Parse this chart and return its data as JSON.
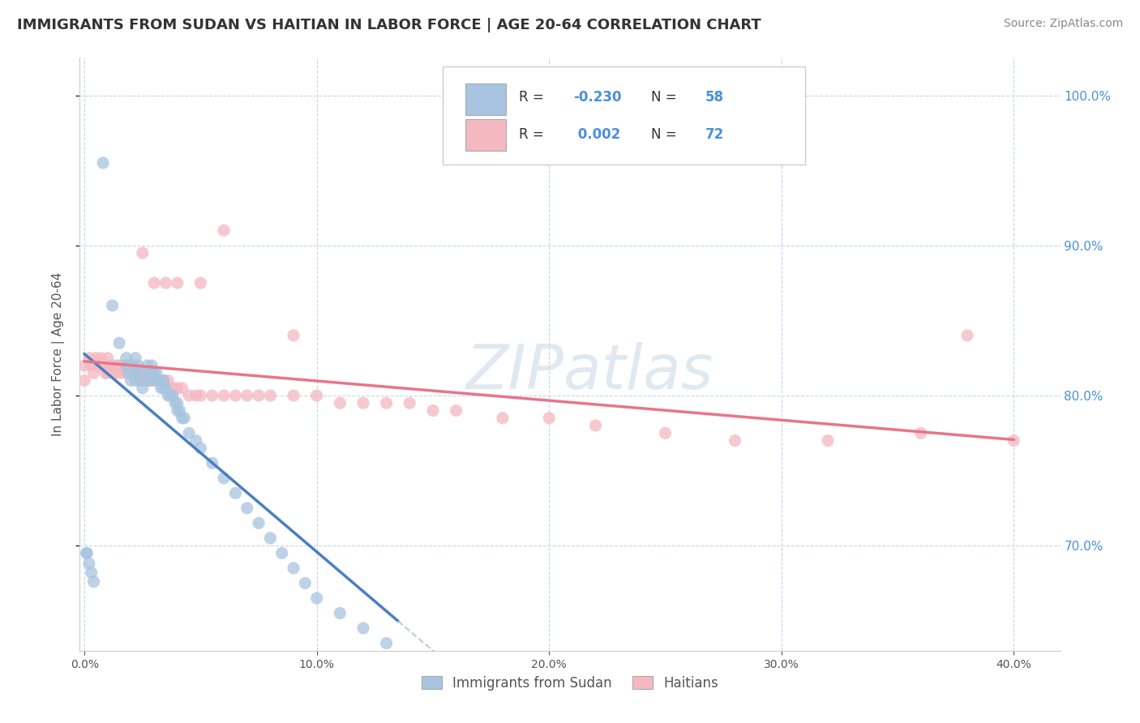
{
  "title": "IMMIGRANTS FROM SUDAN VS HAITIAN IN LABOR FORCE | AGE 20-64 CORRELATION CHART",
  "source": "Source: ZipAtlas.com",
  "ylabel": "In Labor Force | Age 20-64",
  "legend_label_1": "Immigrants from Sudan",
  "legend_label_2": "Haitians",
  "r1": -0.23,
  "n1": 58,
  "r2": 0.002,
  "n2": 72,
  "color_sudan": "#a8c4e0",
  "color_haitian": "#f4b8c1",
  "color_sudan_line": "#4a7fc1",
  "color_haitian_line": "#e8758a",
  "color_dashed_line": "#b8cce0",
  "background_color": "#ffffff",
  "plot_bg_color": "#ffffff",
  "grid_color": "#c8d4e8",
  "xmin": -0.002,
  "xmax": 0.42,
  "ymin": 0.63,
  "ymax": 1.025,
  "sudan_x": [
    0.001,
    0.008,
    0.012,
    0.015,
    0.018,
    0.018,
    0.019,
    0.02,
    0.022,
    0.022,
    0.022,
    0.023,
    0.024,
    0.025,
    0.025,
    0.027,
    0.028,
    0.028,
    0.029,
    0.029,
    0.03,
    0.03,
    0.031,
    0.032,
    0.033,
    0.033,
    0.034,
    0.034,
    0.035,
    0.036,
    0.037,
    0.038,
    0.039,
    0.04,
    0.04,
    0.041,
    0.042,
    0.043,
    0.045,
    0.048,
    0.05,
    0.055,
    0.06,
    0.065,
    0.07,
    0.075,
    0.08,
    0.085,
    0.09,
    0.095,
    0.1,
    0.11,
    0.12,
    0.13,
    0.001,
    0.002,
    0.003,
    0.004
  ],
  "sudan_y": [
    0.695,
    0.955,
    0.86,
    0.835,
    0.825,
    0.82,
    0.815,
    0.81,
    0.825,
    0.815,
    0.81,
    0.82,
    0.815,
    0.81,
    0.805,
    0.82,
    0.815,
    0.81,
    0.82,
    0.815,
    0.815,
    0.81,
    0.815,
    0.81,
    0.81,
    0.805,
    0.81,
    0.805,
    0.805,
    0.8,
    0.8,
    0.8,
    0.795,
    0.795,
    0.79,
    0.79,
    0.785,
    0.785,
    0.775,
    0.77,
    0.765,
    0.755,
    0.745,
    0.735,
    0.725,
    0.715,
    0.705,
    0.695,
    0.685,
    0.675,
    0.665,
    0.655,
    0.645,
    0.635,
    0.695,
    0.688,
    0.682,
    0.676
  ],
  "haitian_x": [
    0.0,
    0.0,
    0.002,
    0.003,
    0.004,
    0.005,
    0.006,
    0.007,
    0.008,
    0.009,
    0.01,
    0.01,
    0.011,
    0.012,
    0.013,
    0.014,
    0.015,
    0.015,
    0.016,
    0.017,
    0.018,
    0.019,
    0.02,
    0.02,
    0.021,
    0.022,
    0.023,
    0.024,
    0.025,
    0.026,
    0.027,
    0.028,
    0.03,
    0.032,
    0.034,
    0.036,
    0.038,
    0.04,
    0.042,
    0.045,
    0.048,
    0.05,
    0.055,
    0.06,
    0.065,
    0.07,
    0.075,
    0.08,
    0.09,
    0.1,
    0.11,
    0.12,
    0.13,
    0.14,
    0.15,
    0.16,
    0.18,
    0.2,
    0.22,
    0.25,
    0.28,
    0.32,
    0.36,
    0.4,
    0.025,
    0.03,
    0.035,
    0.04,
    0.05,
    0.06,
    0.09,
    0.38
  ],
  "haitian_y": [
    0.82,
    0.81,
    0.825,
    0.82,
    0.815,
    0.825,
    0.82,
    0.825,
    0.82,
    0.815,
    0.825,
    0.815,
    0.82,
    0.82,
    0.815,
    0.82,
    0.82,
    0.815,
    0.82,
    0.815,
    0.82,
    0.815,
    0.82,
    0.815,
    0.82,
    0.815,
    0.815,
    0.81,
    0.815,
    0.81,
    0.81,
    0.81,
    0.81,
    0.81,
    0.81,
    0.81,
    0.805,
    0.805,
    0.805,
    0.8,
    0.8,
    0.8,
    0.8,
    0.8,
    0.8,
    0.8,
    0.8,
    0.8,
    0.8,
    0.8,
    0.795,
    0.795,
    0.795,
    0.795,
    0.79,
    0.79,
    0.785,
    0.785,
    0.78,
    0.775,
    0.77,
    0.77,
    0.775,
    0.77,
    0.895,
    0.875,
    0.875,
    0.875,
    0.875,
    0.91,
    0.84,
    0.84
  ],
  "sudan_line_x_start": 0.0,
  "sudan_line_x_end": 0.135,
  "sudan_line_x_dash_end": 0.38,
  "haitian_line_x_start": 0.0,
  "haitian_line_x_end": 0.4
}
